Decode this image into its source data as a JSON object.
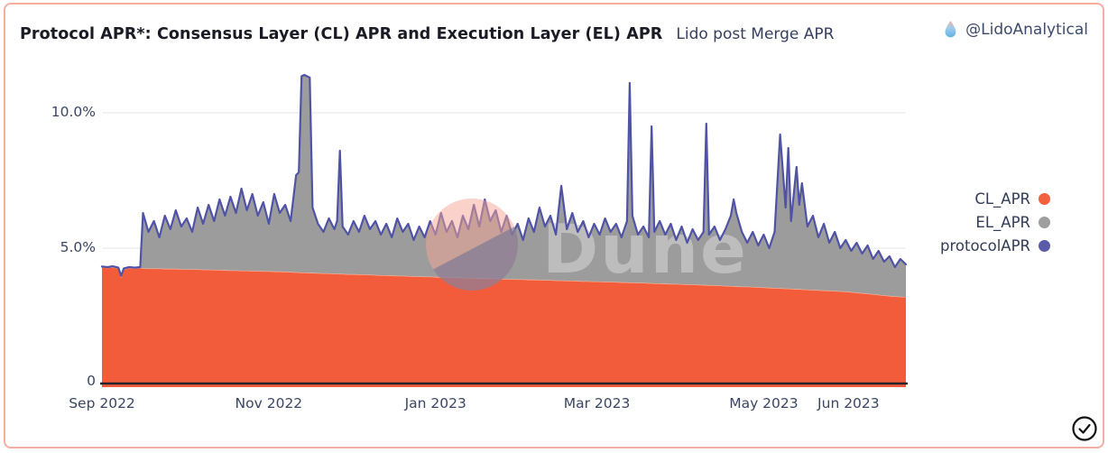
{
  "header": {
    "title": "Protocol APR*: Consensus Layer (CL) APR and Execution Layer (EL) APR",
    "subtitle": "Lido post Merge APR",
    "account": "@LidoAnalytical",
    "account_icon": "lido-droplet-icon"
  },
  "watermark": {
    "text": "Dune",
    "logo": "dune-sunset-circle"
  },
  "footer": {
    "status_icon": "circled-checkmark"
  },
  "colors": {
    "cl_red": "#F25C3B",
    "el_gray": "#9C9C9C",
    "protocol_blue": "#5053A5",
    "border_pink": "#F6AEA1",
    "grid": "#EAEAEC",
    "axis": "#23232E",
    "text_dark": "#1B1B26",
    "text_slate": "#3B4663"
  },
  "chart_data": {
    "type": "area",
    "subtype": "stacked areas with total line",
    "title": "Protocol APR*: Consensus Layer (CL) APR and Execution Layer (EL) APR",
    "subtitle": "Lido post Merge APR",
    "grid": "horizontal only",
    "legend_position": "right",
    "legend": [
      {
        "label": "CL_APR",
        "color": "#F2603D",
        "render": "area from 0"
      },
      {
        "label": "EL_APR",
        "color": "#9E9E9E",
        "render": "band stacked on CL_APR"
      },
      {
        "label": "protocolAPR",
        "color": "#5B5BA9",
        "render": "line at CL_APR+EL_APR"
      }
    ],
    "x_axis": {
      "unit": "days since 2022-09-01",
      "range_days": [
        0,
        294
      ],
      "ticks": [
        {
          "day": 0,
          "label": "Sep 2022"
        },
        {
          "day": 61,
          "label": "Nov 2022"
        },
        {
          "day": 122,
          "label": "Jan 2023"
        },
        {
          "day": 181,
          "label": "Mar 2023"
        },
        {
          "day": 242,
          "label": "May 2023"
        },
        {
          "day": 273,
          "label": "Jun 2023"
        }
      ]
    },
    "y_axis": {
      "unit": "percent APR",
      "range": [
        0,
        11.7
      ],
      "ticks": [
        {
          "value": 10,
          "label": "10.0%"
        },
        {
          "value": 5,
          "label": "5.0%"
        },
        {
          "value": 0,
          "label": "0"
        }
      ]
    },
    "columns": [
      "day",
      "CL_APR_pct",
      "protocolAPR_pct"
    ],
    "note": "EL_APR = protocolAPR - CL_APR (gray band between red area top and blue line)",
    "points": [
      [
        0,
        4.3,
        4.32
      ],
      [
        2,
        4.28,
        4.3
      ],
      [
        4,
        4.3,
        4.33
      ],
      [
        6,
        4.26,
        4.28
      ],
      [
        7,
        3.95,
        3.98
      ],
      [
        8,
        4.22,
        4.25
      ],
      [
        10,
        4.27,
        4.3
      ],
      [
        12,
        4.26,
        4.28
      ],
      [
        14,
        4.28,
        4.3
      ],
      [
        15,
        4.26,
        6.3
      ],
      [
        17,
        4.25,
        5.6
      ],
      [
        19,
        4.25,
        6.0
      ],
      [
        21,
        4.25,
        5.4
      ],
      [
        23,
        4.24,
        6.2
      ],
      [
        25,
        4.24,
        5.7
      ],
      [
        27,
        4.24,
        6.4
      ],
      [
        29,
        4.23,
        5.8
      ],
      [
        31,
        4.22,
        6.1
      ],
      [
        33,
        4.22,
        5.6
      ],
      [
        35,
        4.22,
        6.5
      ],
      [
        37,
        4.21,
        5.9
      ],
      [
        39,
        4.21,
        6.6
      ],
      [
        41,
        4.2,
        6.0
      ],
      [
        43,
        4.2,
        6.8
      ],
      [
        45,
        4.19,
        6.2
      ],
      [
        47,
        4.18,
        6.9
      ],
      [
        49,
        4.18,
        6.3
      ],
      [
        51,
        4.17,
        7.2
      ],
      [
        53,
        4.17,
        6.4
      ],
      [
        55,
        4.16,
        7.0
      ],
      [
        57,
        4.16,
        6.2
      ],
      [
        59,
        4.15,
        6.7
      ],
      [
        61,
        4.15,
        5.9
      ],
      [
        63,
        4.14,
        7.0
      ],
      [
        65,
        4.14,
        6.3
      ],
      [
        67,
        4.13,
        6.6
      ],
      [
        69,
        4.12,
        6.0
      ],
      [
        71,
        4.11,
        7.7
      ],
      [
        72,
        4.11,
        7.8
      ],
      [
        73,
        4.1,
        11.35
      ],
      [
        74,
        4.1,
        11.4
      ],
      [
        75,
        4.1,
        11.35
      ],
      [
        76,
        4.09,
        11.3
      ],
      [
        77,
        4.09,
        6.5
      ],
      [
        79,
        4.08,
        5.9
      ],
      [
        81,
        4.07,
        5.6
      ],
      [
        83,
        4.07,
        6.1
      ],
      [
        85,
        4.06,
        5.7
      ],
      [
        86,
        4.06,
        6.0
      ],
      [
        87,
        4.05,
        8.6
      ],
      [
        88,
        4.05,
        5.8
      ],
      [
        90,
        4.04,
        5.5
      ],
      [
        92,
        4.04,
        6.0
      ],
      [
        94,
        4.03,
        5.6
      ],
      [
        96,
        4.03,
        6.2
      ],
      [
        98,
        4.02,
        5.7
      ],
      [
        100,
        4.01,
        6.0
      ],
      [
        102,
        4.0,
        5.5
      ],
      [
        104,
        4.0,
        5.9
      ],
      [
        106,
        3.99,
        5.4
      ],
      [
        108,
        3.98,
        6.1
      ],
      [
        110,
        3.98,
        5.6
      ],
      [
        112,
        3.97,
        5.9
      ],
      [
        114,
        3.96,
        5.3
      ],
      [
        116,
        3.96,
        5.8
      ],
      [
        118,
        3.95,
        5.4
      ],
      [
        120,
        3.95,
        6.0
      ],
      [
        122,
        3.94,
        5.5
      ],
      [
        124,
        3.93,
        6.3
      ],
      [
        126,
        3.93,
        5.6
      ],
      [
        128,
        3.92,
        6.0
      ],
      [
        130,
        3.92,
        5.4
      ],
      [
        132,
        3.91,
        6.2
      ],
      [
        134,
        3.9,
        5.7
      ],
      [
        136,
        3.9,
        6.6
      ],
      [
        138,
        3.89,
        5.8
      ],
      [
        140,
        3.89,
        6.8
      ],
      [
        142,
        3.88,
        6.0
      ],
      [
        144,
        3.88,
        6.4
      ],
      [
        146,
        3.87,
        5.6
      ],
      [
        148,
        3.86,
        6.2
      ],
      [
        150,
        3.86,
        5.5
      ],
      [
        152,
        3.85,
        5.9
      ],
      [
        154,
        3.85,
        5.3
      ],
      [
        156,
        3.84,
        6.1
      ],
      [
        158,
        3.84,
        5.6
      ],
      [
        160,
        3.83,
        6.5
      ],
      [
        162,
        3.82,
        5.8
      ],
      [
        164,
        3.82,
        6.2
      ],
      [
        166,
        3.81,
        5.5
      ],
      [
        168,
        3.81,
        7.3
      ],
      [
        170,
        3.8,
        5.7
      ],
      [
        172,
        3.8,
        6.3
      ],
      [
        174,
        3.79,
        5.6
      ],
      [
        176,
        3.78,
        6.0
      ],
      [
        178,
        3.78,
        5.4
      ],
      [
        180,
        3.77,
        5.9
      ],
      [
        182,
        3.77,
        5.5
      ],
      [
        184,
        3.76,
        6.1
      ],
      [
        186,
        3.76,
        5.6
      ],
      [
        188,
        3.75,
        5.9
      ],
      [
        190,
        3.74,
        5.4
      ],
      [
        192,
        3.74,
        6.0
      ],
      [
        193,
        3.73,
        11.1
      ],
      [
        194,
        3.73,
        6.2
      ],
      [
        196,
        3.72,
        5.5
      ],
      [
        198,
        3.72,
        5.8
      ],
      [
        200,
        3.71,
        5.4
      ],
      [
        201,
        3.71,
        9.5
      ],
      [
        202,
        3.7,
        5.6
      ],
      [
        204,
        3.7,
        6.0
      ],
      [
        206,
        3.69,
        5.5
      ],
      [
        208,
        3.68,
        5.9
      ],
      [
        210,
        3.68,
        5.3
      ],
      [
        212,
        3.67,
        5.8
      ],
      [
        214,
        3.66,
        5.2
      ],
      [
        216,
        3.66,
        5.7
      ],
      [
        218,
        3.65,
        5.3
      ],
      [
        220,
        3.64,
        5.6
      ],
      [
        221,
        3.64,
        9.6
      ],
      [
        222,
        3.63,
        5.5
      ],
      [
        224,
        3.63,
        5.8
      ],
      [
        226,
        3.62,
        5.3
      ],
      [
        228,
        3.61,
        5.7
      ],
      [
        230,
        3.6,
        6.2
      ],
      [
        231,
        3.6,
        6.8
      ],
      [
        232,
        3.59,
        6.3
      ],
      [
        234,
        3.58,
        5.6
      ],
      [
        236,
        3.58,
        5.2
      ],
      [
        238,
        3.57,
        5.6
      ],
      [
        240,
        3.56,
        5.1
      ],
      [
        242,
        3.55,
        5.5
      ],
      [
        244,
        3.54,
        5.0
      ],
      [
        246,
        3.53,
        5.6
      ],
      [
        248,
        3.52,
        9.2
      ],
      [
        250,
        3.51,
        6.5
      ],
      [
        251,
        3.51,
        8.7
      ],
      [
        252,
        3.5,
        6.0
      ],
      [
        254,
        3.49,
        8.0
      ],
      [
        255,
        3.49,
        6.6
      ],
      [
        256,
        3.48,
        7.4
      ],
      [
        258,
        3.47,
        5.8
      ],
      [
        260,
        3.46,
        6.2
      ],
      [
        262,
        3.45,
        5.4
      ],
      [
        264,
        3.44,
        5.9
      ],
      [
        266,
        3.43,
        5.2
      ],
      [
        268,
        3.42,
        5.6
      ],
      [
        270,
        3.41,
        5.0
      ],
      [
        272,
        3.4,
        5.3
      ],
      [
        274,
        3.38,
        4.9
      ],
      [
        276,
        3.36,
        5.2
      ],
      [
        278,
        3.34,
        4.8
      ],
      [
        280,
        3.32,
        5.1
      ],
      [
        282,
        3.3,
        4.6
      ],
      [
        284,
        3.28,
        4.9
      ],
      [
        286,
        3.26,
        4.5
      ],
      [
        288,
        3.24,
        4.7
      ],
      [
        290,
        3.22,
        4.3
      ],
      [
        292,
        3.21,
        4.6
      ],
      [
        294,
        3.2,
        4.4
      ]
    ]
  }
}
